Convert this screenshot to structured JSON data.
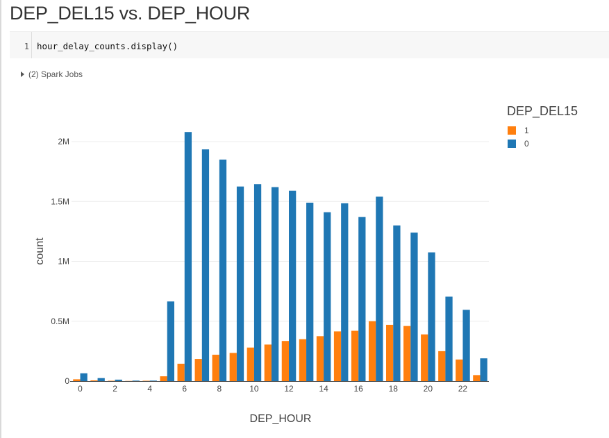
{
  "cell": {
    "title": "DEP_DEL15 vs. DEP_HOUR",
    "line_number": "1",
    "code": "hour_delay_counts.display()",
    "spark_jobs_label": "(2) Spark Jobs"
  },
  "chart_data": {
    "type": "bar",
    "xlabel": "DEP_HOUR",
    "ylabel": "count",
    "x": [
      0,
      1,
      2,
      3,
      4,
      5,
      6,
      7,
      8,
      9,
      10,
      11,
      12,
      13,
      14,
      15,
      16,
      17,
      18,
      19,
      20,
      21,
      22,
      23
    ],
    "x_tick_labels": [
      "0",
      "2",
      "4",
      "6",
      "8",
      "10",
      "12",
      "14",
      "16",
      "18",
      "20",
      "22"
    ],
    "x_tick_values": [
      0,
      2,
      4,
      6,
      8,
      10,
      12,
      14,
      16,
      18,
      20,
      22
    ],
    "y_tick_labels": [
      "0",
      "0.5M",
      "1M",
      "1.5M",
      "2M"
    ],
    "y_tick_values": [
      0,
      500000,
      1000000,
      1500000,
      2000000
    ],
    "ylim": [
      0,
      2200000
    ],
    "legend_title": "DEP_DEL15",
    "legend_position": "top-right",
    "grid": true,
    "series": [
      {
        "name": "1",
        "color": "#ff7f0e",
        "values": [
          15000,
          6000,
          3000,
          1500,
          3000,
          40000,
          145000,
          185000,
          220000,
          235000,
          280000,
          305000,
          335000,
          350000,
          375000,
          415000,
          420000,
          500000,
          470000,
          460000,
          390000,
          250000,
          180000,
          50000
        ]
      },
      {
        "name": "0",
        "color": "#1f77b4",
        "values": [
          65000,
          25000,
          12000,
          4000,
          4000,
          665000,
          2080000,
          1935000,
          1850000,
          1625000,
          1645000,
          1620000,
          1590000,
          1490000,
          1410000,
          1485000,
          1370000,
          1540000,
          1300000,
          1240000,
          1075000,
          705000,
          595000,
          190000
        ]
      }
    ]
  }
}
